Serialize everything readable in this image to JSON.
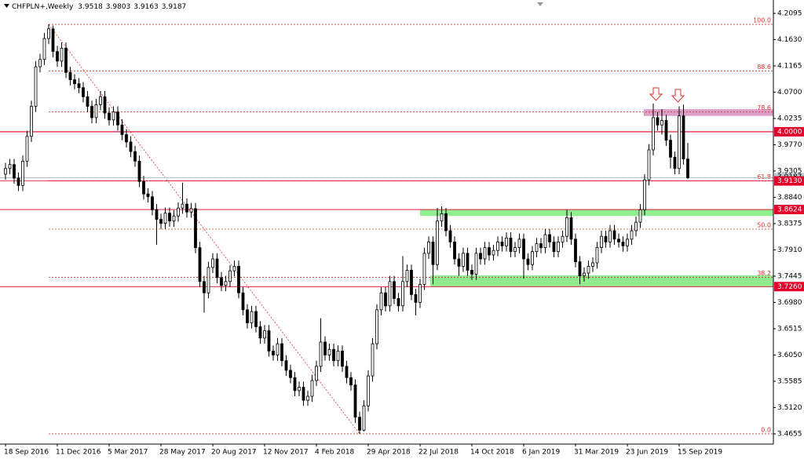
{
  "chart_data": {
    "type": "candlestick",
    "title": "CHFPLN+,Weekly",
    "categories": [
      "18 Sep 2016",
      null,
      null,
      null,
      null,
      null,
      null,
      null,
      null,
      null,
      null,
      null,
      "11 Dec 2016",
      null,
      null,
      null,
      null,
      null,
      null,
      null,
      null,
      null,
      null,
      null,
      "5 Mar 2017",
      null,
      null,
      null,
      null,
      null,
      null,
      null,
      null,
      null,
      null,
      null,
      "28 May 2017",
      null,
      null,
      null,
      null,
      null,
      null,
      null,
      null,
      null,
      null,
      null,
      "20 Aug 2017",
      null,
      null,
      null,
      null,
      null,
      null,
      null,
      null,
      null,
      null,
      null,
      "12 Nov 2017",
      null,
      null,
      null,
      null,
      null,
      null,
      null,
      null,
      null,
      null,
      null,
      "4 Feb 2018",
      null,
      null,
      null,
      null,
      null,
      null,
      null,
      null,
      null,
      null,
      null,
      "29 Apr 2018",
      null,
      null,
      null,
      null,
      null,
      null,
      null,
      null,
      null,
      null,
      null,
      "22 Jul 2018",
      null,
      null,
      null,
      null,
      null,
      null,
      null,
      null,
      null,
      null,
      null,
      "14 Oct 2018",
      null,
      null,
      null,
      null,
      null,
      null,
      null,
      null,
      null,
      null,
      null,
      "6 Jan 2019",
      null,
      null,
      null,
      null,
      null,
      null,
      null,
      null,
      null,
      null,
      null,
      "31 Mar 2019",
      null,
      null,
      null,
      null,
      null,
      null,
      null,
      null,
      null,
      null,
      null,
      "23 Jun 2019",
      null,
      null,
      null,
      null,
      null,
      null,
      null,
      null,
      null,
      null,
      null,
      "15 Sep 2019",
      null,
      null
    ],
    "open": [
      3.925,
      3.935,
      3.942,
      3.918,
      3.905,
      3.948,
      3.992,
      4.045,
      4.115,
      4.128,
      4.165,
      4.182,
      4.142,
      4.125,
      4.148,
      4.105,
      4.092,
      4.085,
      4.078,
      4.062,
      4.045,
      4.025,
      4.048,
      4.062,
      4.033,
      4.021,
      4.035,
      4.012,
      3.995,
      3.982,
      3.965,
      3.948,
      3.912,
      3.89,
      3.885,
      3.862,
      3.845,
      3.838,
      3.856,
      3.842,
      3.851,
      3.865,
      3.872,
      3.858,
      3.864,
      3.795,
      3.735,
      3.715,
      3.76,
      3.775,
      3.742,
      3.728,
      3.735,
      3.754,
      3.762,
      3.715,
      3.685,
      3.662,
      3.682,
      3.655,
      3.635,
      3.648,
      3.612,
      3.605,
      3.625,
      3.595,
      3.578,
      3.565,
      3.542,
      3.548,
      3.525,
      3.532,
      3.56,
      3.585,
      3.628,
      3.605,
      3.615,
      3.595,
      3.612,
      3.585,
      3.565,
      3.552,
      3.495,
      3.472,
      3.515,
      3.568,
      3.625,
      3.685,
      3.715,
      3.692,
      3.735,
      3.705,
      3.692,
      3.735,
      3.755,
      3.712,
      3.698,
      3.73,
      3.785,
      3.805,
      3.765,
      3.842,
      3.855,
      3.825,
      3.805,
      3.775,
      3.762,
      3.785,
      3.755,
      3.748,
      3.785,
      3.775,
      3.795,
      3.782,
      3.79,
      3.805,
      3.798,
      3.812,
      3.788,
      3.795,
      3.81,
      3.775,
      3.765,
      3.788,
      3.802,
      3.795,
      3.818,
      3.805,
      3.788,
      3.805,
      3.815,
      3.848,
      3.81,
      3.77,
      3.745,
      3.75,
      3.762,
      3.768,
      3.795,
      3.815,
      3.805,
      3.825,
      3.81,
      3.805,
      3.798,
      3.81,
      3.825,
      3.84,
      3.862,
      3.915,
      3.968,
      4.025,
      4.012,
      4.02,
      3.985,
      3.955,
      3.935,
      4.028,
      3.9518
    ],
    "high": [
      3.945,
      3.952,
      3.952,
      3.928,
      3.958,
      4.002,
      4.055,
      4.125,
      4.138,
      4.175,
      4.19,
      4.188,
      4.152,
      4.158,
      4.158,
      4.115,
      4.102,
      4.095,
      4.088,
      4.072,
      4.055,
      4.058,
      4.072,
      4.072,
      4.043,
      4.045,
      4.045,
      4.022,
      4.005,
      3.992,
      3.975,
      3.958,
      3.922,
      3.9,
      3.895,
      3.872,
      3.855,
      3.866,
      3.866,
      3.861,
      3.875,
      3.91,
      3.882,
      3.874,
      3.874,
      3.805,
      3.745,
      3.77,
      3.785,
      3.785,
      3.752,
      3.745,
      3.764,
      3.772,
      3.772,
      3.725,
      3.695,
      3.692,
      3.692,
      3.665,
      3.658,
      3.658,
      3.622,
      3.635,
      3.635,
      3.605,
      3.588,
      3.575,
      3.558,
      3.558,
      3.542,
      3.57,
      3.595,
      3.67,
      3.638,
      3.625,
      3.625,
      3.622,
      3.622,
      3.595,
      3.575,
      3.562,
      3.505,
      3.525,
      3.578,
      3.635,
      3.695,
      3.725,
      3.725,
      3.745,
      3.745,
      3.715,
      3.78,
      3.765,
      3.765,
      3.722,
      3.74,
      3.795,
      3.815,
      3.815,
      3.865,
      3.868,
      3.865,
      3.835,
      3.815,
      3.785,
      3.795,
      3.795,
      3.765,
      3.795,
      3.795,
      3.805,
      3.805,
      3.8,
      3.815,
      3.815,
      3.822,
      3.822,
      3.805,
      3.82,
      3.82,
      3.785,
      3.798,
      3.812,
      3.812,
      3.828,
      3.828,
      3.815,
      3.815,
      3.825,
      3.862,
      3.858,
      3.82,
      3.78,
      3.76,
      3.772,
      3.778,
      3.805,
      3.825,
      3.825,
      3.835,
      3.835,
      3.82,
      3.815,
      3.82,
      3.835,
      3.85,
      3.872,
      3.925,
      3.978,
      4.05,
      4.035,
      4.04,
      4.03,
      3.995,
      3.965,
      4.045,
      4.048,
      3.9803
    ],
    "low": [
      3.915,
      3.925,
      3.908,
      3.895,
      3.895,
      3.938,
      3.982,
      4.035,
      4.105,
      4.118,
      4.155,
      4.132,
      4.115,
      4.115,
      4.095,
      4.082,
      4.075,
      4.068,
      4.052,
      4.035,
      4.015,
      4.015,
      4.038,
      4.023,
      4.011,
      4.011,
      4.002,
      3.985,
      3.972,
      3.955,
      3.938,
      3.902,
      3.88,
      3.875,
      3.852,
      3.8,
      3.828,
      3.828,
      3.832,
      3.832,
      3.841,
      3.855,
      3.848,
      3.848,
      3.785,
      3.725,
      3.68,
      3.705,
      3.75,
      3.732,
      3.718,
      3.718,
      3.725,
      3.744,
      3.705,
      3.675,
      3.652,
      3.652,
      3.645,
      3.625,
      3.625,
      3.602,
      3.595,
      3.595,
      3.585,
      3.568,
      3.555,
      3.532,
      3.532,
      3.515,
      3.515,
      3.522,
      3.55,
      3.575,
      3.595,
      3.595,
      3.585,
      3.585,
      3.575,
      3.555,
      3.542,
      3.485,
      3.4655,
      3.47,
      3.505,
      3.558,
      3.615,
      3.675,
      3.682,
      3.682,
      3.695,
      3.682,
      3.682,
      3.725,
      3.702,
      3.675,
      3.688,
      3.72,
      3.775,
      3.73,
      3.755,
      3.832,
      3.815,
      3.795,
      3.765,
      3.745,
      3.752,
      3.745,
      3.738,
      3.738,
      3.765,
      3.765,
      3.772,
      3.772,
      3.78,
      3.788,
      3.788,
      3.778,
      3.778,
      3.785,
      3.74,
      3.755,
      3.755,
      3.778,
      3.785,
      3.785,
      3.795,
      3.778,
      3.778,
      3.795,
      3.805,
      3.8,
      3.76,
      3.73,
      3.735,
      3.74,
      3.752,
      3.758,
      3.785,
      3.795,
      3.795,
      3.8,
      3.795,
      3.788,
      3.788,
      3.8,
      3.815,
      3.83,
      3.852,
      3.905,
      3.958,
      4.002,
      3.995,
      3.975,
      3.935,
      3.925,
      3.925,
      3.942,
      3.9163
    ],
    "close": [
      3.935,
      3.942,
      3.918,
      3.905,
      3.948,
      3.992,
      4.045,
      4.115,
      4.128,
      4.165,
      4.182,
      4.142,
      4.125,
      4.148,
      4.105,
      4.092,
      4.085,
      4.078,
      4.062,
      4.045,
      4.025,
      4.048,
      4.062,
      4.033,
      4.021,
      4.035,
      4.012,
      3.995,
      3.982,
      3.965,
      3.948,
      3.912,
      3.89,
      3.885,
      3.862,
      3.845,
      3.838,
      3.856,
      3.842,
      3.851,
      3.865,
      3.872,
      3.858,
      3.864,
      3.795,
      3.735,
      3.715,
      3.76,
      3.775,
      3.742,
      3.728,
      3.735,
      3.754,
      3.762,
      3.715,
      3.685,
      3.662,
      3.682,
      3.655,
      3.635,
      3.648,
      3.612,
      3.605,
      3.625,
      3.595,
      3.578,
      3.565,
      3.542,
      3.548,
      3.525,
      3.532,
      3.56,
      3.585,
      3.628,
      3.605,
      3.615,
      3.595,
      3.612,
      3.585,
      3.565,
      3.552,
      3.495,
      3.472,
      3.515,
      3.568,
      3.625,
      3.685,
      3.715,
      3.692,
      3.735,
      3.705,
      3.692,
      3.735,
      3.755,
      3.712,
      3.698,
      3.73,
      3.785,
      3.805,
      3.765,
      3.842,
      3.855,
      3.825,
      3.805,
      3.775,
      3.762,
      3.785,
      3.755,
      3.748,
      3.785,
      3.775,
      3.795,
      3.782,
      3.79,
      3.805,
      3.798,
      3.812,
      3.788,
      3.795,
      3.81,
      3.775,
      3.765,
      3.788,
      3.802,
      3.795,
      3.818,
      3.805,
      3.788,
      3.805,
      3.815,
      3.848,
      3.81,
      3.77,
      3.745,
      3.75,
      3.762,
      3.768,
      3.795,
      3.815,
      3.805,
      3.825,
      3.81,
      3.805,
      3.798,
      3.81,
      3.825,
      3.84,
      3.862,
      3.915,
      3.968,
      4.025,
      4.012,
      4.02,
      3.985,
      3.955,
      3.935,
      4.028,
      3.9518,
      3.9187
    ],
    "ylim": [
      3.4474,
      4.2331
    ],
    "yticks": [
      4.2095,
      {
        "value": 4.163,
        "label": "4.1630"
      },
      4.1165,
      {
        "value": 4.07,
        "label": "4.0700"
      },
      4.0235,
      {
        "value": 3.977,
        "label": "3.9770"
      },
      3.9305,
      {
        "value": 3.884,
        "label": "3.8840"
      },
      3.8375,
      {
        "value": 3.791,
        "label": "3.7910"
      },
      3.7445,
      {
        "value": 3.698,
        "label": "3.6980"
      },
      3.6515,
      {
        "value": 3.605,
        "label": "3.6050"
      },
      3.5585,
      {
        "value": 3.512,
        "label": "3.5120"
      },
      3.4655
    ],
    "price_levels": [
      {
        "value": 4.0,
        "label": "4.0000"
      },
      {
        "value": 3.913,
        "label": "3.9130"
      },
      3.8624,
      {
        "value": 3.726,
        "label": "3.7260"
      }
    ],
    "fib_levels": [
      {
        "value": 4.19,
        "label": "100.0"
      },
      {
        "value": 4.1074,
        "label": "88.6"
      },
      {
        "value": 4.035,
        "label": "78.6"
      },
      {
        "value": 3.9132,
        "label": "61.8"
      },
      {
        "value": 3.8278,
        "label": "50.0"
      },
      {
        "value": 3.7423,
        "label": "38.2"
      },
      {
        "value": 3.4655,
        "label": "0.0"
      }
    ],
    "zones": [
      {
        "from": 3.851,
        "to": 3.8624,
        "color": "#90ee90"
      },
      {
        "from": 3.726,
        "to": 3.746,
        "color": "#90ee90"
      },
      {
        "from": 4.028,
        "to": 4.04,
        "color": "#dda0c8"
      }
    ],
    "bull_color": "#ffffff",
    "bear_color": "#000000",
    "level_color": "#e0002a",
    "fib_color": "#e0302a"
  }
}
